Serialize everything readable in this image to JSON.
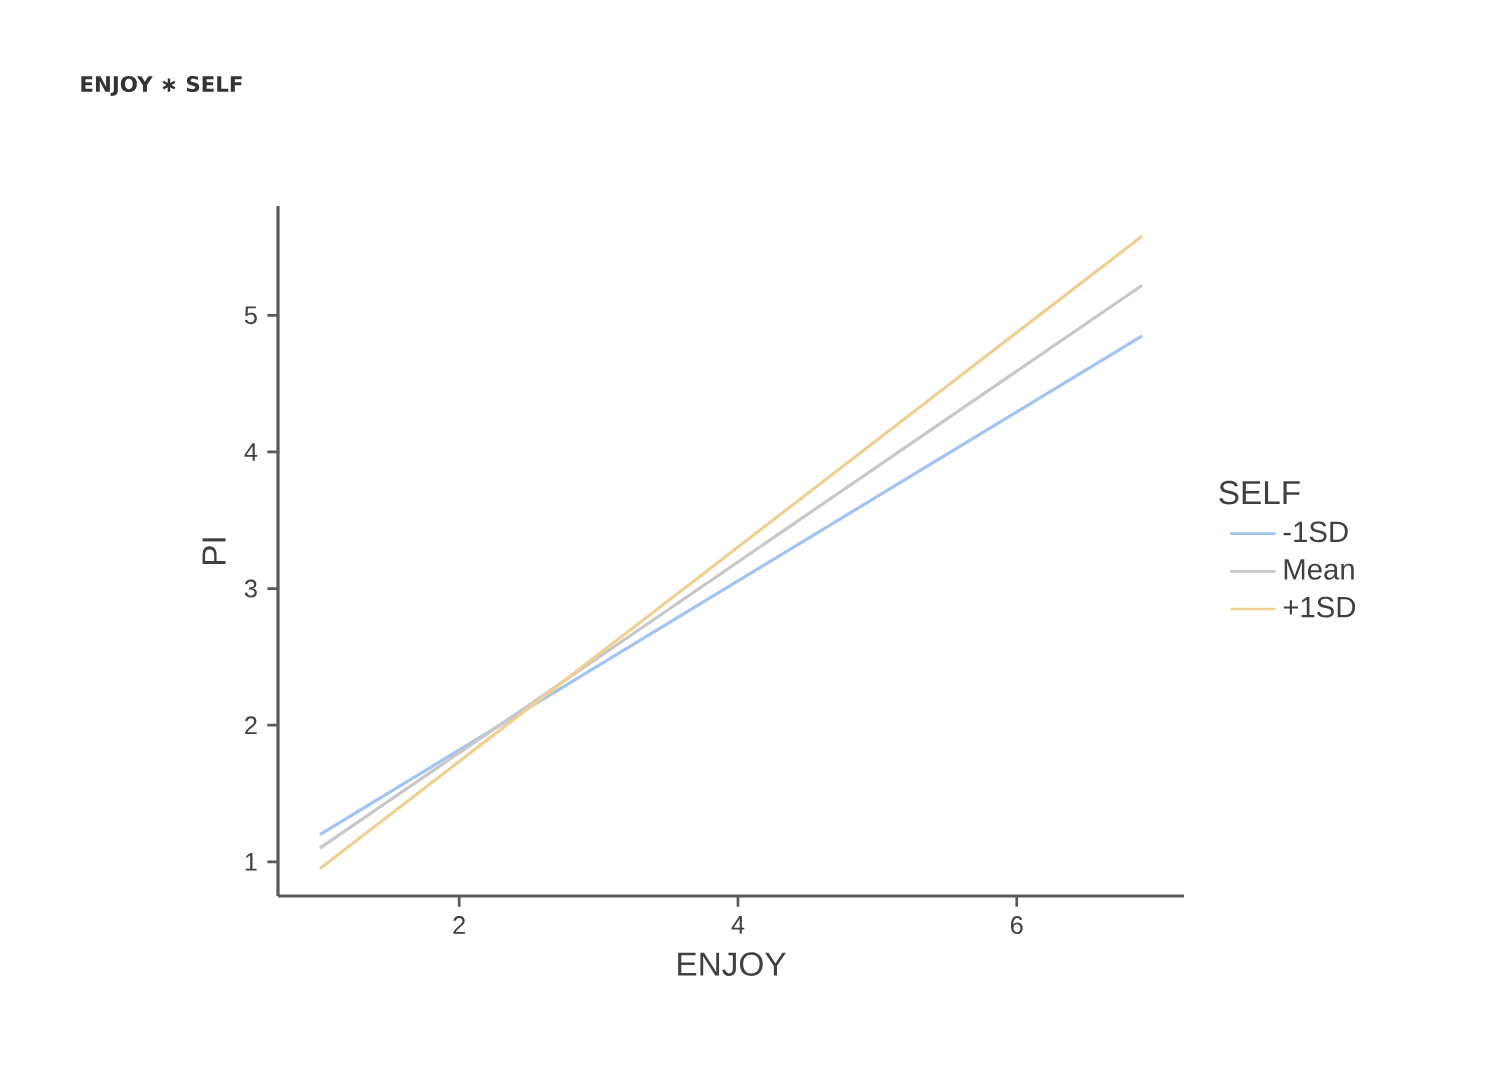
{
  "chart_data": {
    "type": "line",
    "title": "ENJOY ∗ SELF",
    "xlabel": "ENJOY",
    "ylabel": "PI",
    "legend_title": "SELF",
    "legend": "right",
    "x": [
      1,
      6.9
    ],
    "series": [
      {
        "name": "-1SD",
        "color": "#a3c4f0",
        "values": [
          1.2,
          4.85
        ]
      },
      {
        "name": "Mean",
        "color": "#c8c8c8",
        "values": [
          1.1,
          5.22
        ]
      },
      {
        "name": "+1SD",
        "color": "#f0cf94",
        "values": [
          0.95,
          5.58
        ]
      }
    ],
    "xlim": [
      0.7,
      7.2
    ],
    "ylim": [
      0.75,
      5.8
    ],
    "xticks": [
      2,
      4,
      6
    ],
    "yticks": [
      1,
      2,
      3,
      4,
      5
    ],
    "grid": false,
    "marker": "none",
    "line_style": "solid"
  }
}
